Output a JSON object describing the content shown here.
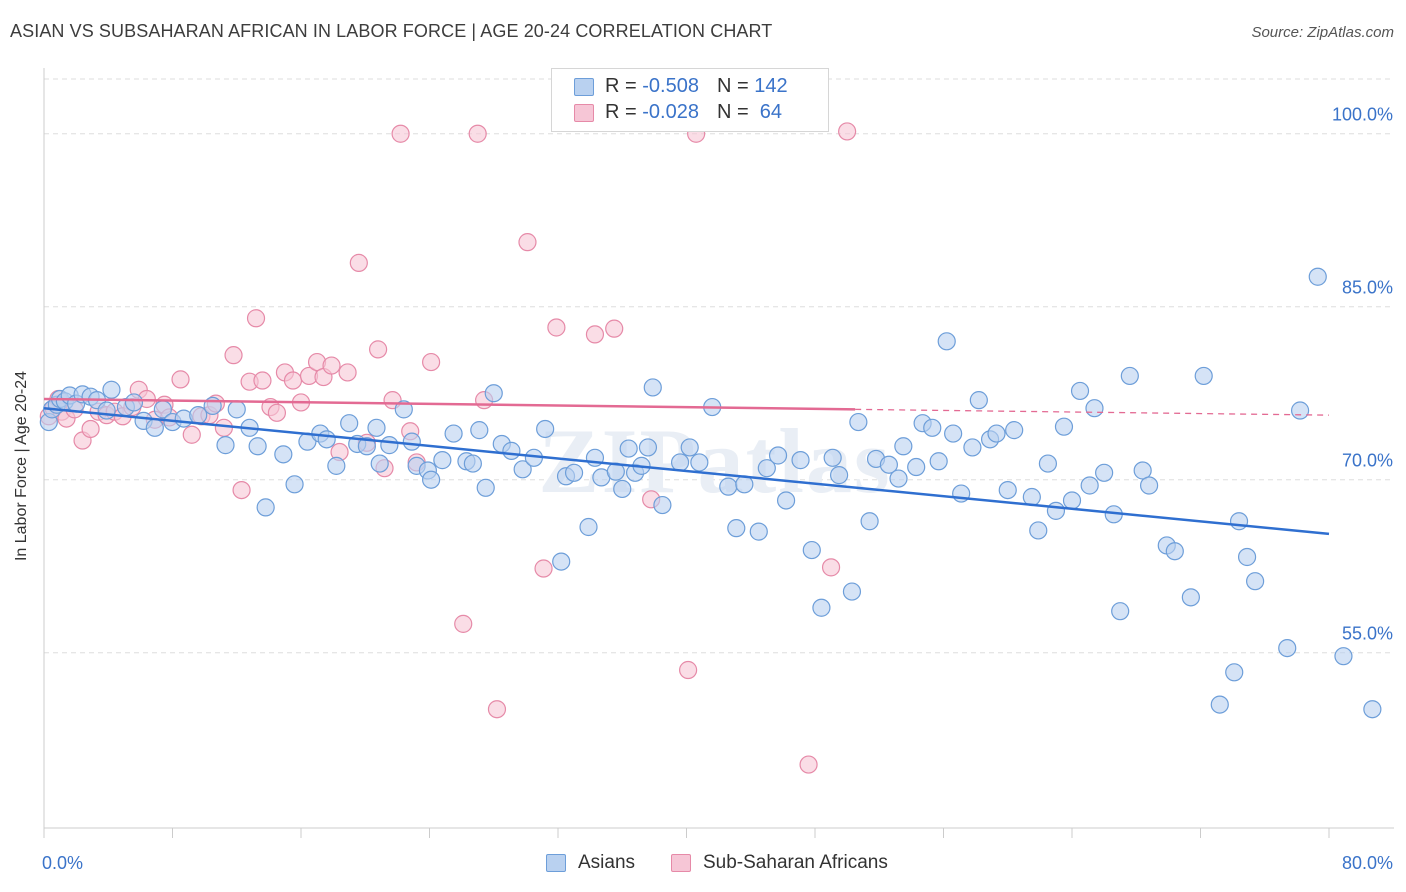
{
  "title": "ASIAN VS SUBSAHARAN AFRICAN IN LABOR FORCE | AGE 20-24 CORRELATION CHART",
  "source": "Source: ZipAtlas.com",
  "colors": {
    "asians_fill": "#b9d1f0",
    "asians_stroke": "#6d9ed9",
    "asians_line": "#2f6fd0",
    "african_fill": "#f6c6d6",
    "african_stroke": "#e68aa8",
    "african_line": "#e36a93",
    "tick_label": "#3a73c9",
    "grid": "#dddddd"
  },
  "legend": {
    "rows": [
      {
        "r_label": "R = ",
        "r_value": "-0.508",
        "n_label": "N = ",
        "n_value": "142"
      },
      {
        "r_label": "R = ",
        "r_value": "-0.028",
        "n_label": "N = ",
        "n_value": " 64"
      }
    ]
  },
  "bottom_legend": [
    "Asians",
    "Sub-Saharan Africans"
  ],
  "chart_data": {
    "type": "scatter",
    "title": "ASIAN VS SUBSAHARAN AFRICAN IN LABOR FORCE | AGE 20-24 CORRELATION CHART",
    "xlabel": "",
    "ylabel": "In Labor Force | Age 20-24",
    "xlim": [
      0,
      80
    ],
    "ylim": [
      39.8,
      105.7
    ],
    "x_tick_labels": [
      "0.0%",
      "80.0%"
    ],
    "y_ticks": [
      55,
      70,
      85,
      100
    ],
    "y_tick_labels": [
      "55.0%",
      "70.0%",
      "85.0%",
      "100.0%"
    ],
    "grid": true,
    "legend_position": "top-center",
    "watermark": "ZIPatlas",
    "series": [
      {
        "name": "Asians",
        "r": -0.508,
        "n": 142,
        "trend": {
          "x": [
            0,
            80
          ],
          "y": [
            76.2,
            65.3
          ]
        },
        "points": [
          [
            0.3,
            75.0
          ],
          [
            0.5,
            76.1
          ],
          [
            0.8,
            76.5
          ],
          [
            1.0,
            77.0
          ],
          [
            1.3,
            76.8
          ],
          [
            1.6,
            77.3
          ],
          [
            2.0,
            76.6
          ],
          [
            2.4,
            77.4
          ],
          [
            2.9,
            77.2
          ],
          [
            3.3,
            76.9
          ],
          [
            3.9,
            76.0
          ],
          [
            4.2,
            77.8
          ],
          [
            5.1,
            76.3
          ],
          [
            5.6,
            76.7
          ],
          [
            6.2,
            75.1
          ],
          [
            6.9,
            74.5
          ],
          [
            7.4,
            76.1
          ],
          [
            8.0,
            75.0
          ],
          [
            8.7,
            75.3
          ],
          [
            9.6,
            75.6
          ],
          [
            10.5,
            76.4
          ],
          [
            11.3,
            73.0
          ],
          [
            12.0,
            76.1
          ],
          [
            12.8,
            74.5
          ],
          [
            13.3,
            72.9
          ],
          [
            13.8,
            67.6
          ],
          [
            14.9,
            72.2
          ],
          [
            15.6,
            69.6
          ],
          [
            16.4,
            73.3
          ],
          [
            17.2,
            74.0
          ],
          [
            17.6,
            73.5
          ],
          [
            18.2,
            71.2
          ],
          [
            19.0,
            74.9
          ],
          [
            19.5,
            73.1
          ],
          [
            20.1,
            72.9
          ],
          [
            20.7,
            74.5
          ],
          [
            20.9,
            71.4
          ],
          [
            21.5,
            73.0
          ],
          [
            22.4,
            76.1
          ],
          [
            22.9,
            73.3
          ],
          [
            23.2,
            71.2
          ],
          [
            23.9,
            70.8
          ],
          [
            24.1,
            70.0
          ],
          [
            24.8,
            71.7
          ],
          [
            25.5,
            74.0
          ],
          [
            26.3,
            71.6
          ],
          [
            26.7,
            71.4
          ],
          [
            27.1,
            74.3
          ],
          [
            27.5,
            69.3
          ],
          [
            28.0,
            77.5
          ],
          [
            28.5,
            73.1
          ],
          [
            29.1,
            72.5
          ],
          [
            29.8,
            70.9
          ],
          [
            30.5,
            71.9
          ],
          [
            31.2,
            74.4
          ],
          [
            32.2,
            62.9
          ],
          [
            32.5,
            70.3
          ],
          [
            33.0,
            70.6
          ],
          [
            33.9,
            65.9
          ],
          [
            34.3,
            71.9
          ],
          [
            34.7,
            70.2
          ],
          [
            35.6,
            70.7
          ],
          [
            36.0,
            69.2
          ],
          [
            36.4,
            72.7
          ],
          [
            36.8,
            70.6
          ],
          [
            37.2,
            71.2
          ],
          [
            37.6,
            72.8
          ],
          [
            37.9,
            78.0
          ],
          [
            38.5,
            67.8
          ],
          [
            39.6,
            71.5
          ],
          [
            40.2,
            72.8
          ],
          [
            40.8,
            71.5
          ],
          [
            41.6,
            76.3
          ],
          [
            42.6,
            69.4
          ],
          [
            43.1,
            65.8
          ],
          [
            43.6,
            69.6
          ],
          [
            44.5,
            65.5
          ],
          [
            45.0,
            71.0
          ],
          [
            45.7,
            72.1
          ],
          [
            46.2,
            68.2
          ],
          [
            47.1,
            71.7
          ],
          [
            47.8,
            63.9
          ],
          [
            48.4,
            58.9
          ],
          [
            49.1,
            71.9
          ],
          [
            49.5,
            70.4
          ],
          [
            50.3,
            60.3
          ],
          [
            50.7,
            75.0
          ],
          [
            51.4,
            66.4
          ],
          [
            51.8,
            71.8
          ],
          [
            52.6,
            71.3
          ],
          [
            53.2,
            70.1
          ],
          [
            53.5,
            72.9
          ],
          [
            54.3,
            71.1
          ],
          [
            54.7,
            74.9
          ],
          [
            55.3,
            74.5
          ],
          [
            55.7,
            71.6
          ],
          [
            56.2,
            82.0
          ],
          [
            56.6,
            74.0
          ],
          [
            57.1,
            68.8
          ],
          [
            57.8,
            72.8
          ],
          [
            58.2,
            76.9
          ],
          [
            58.9,
            73.5
          ],
          [
            59.3,
            74.0
          ],
          [
            60.0,
            69.1
          ],
          [
            60.4,
            74.3
          ],
          [
            61.5,
            68.5
          ],
          [
            61.9,
            65.6
          ],
          [
            62.5,
            71.4
          ],
          [
            63.0,
            67.3
          ],
          [
            63.5,
            74.6
          ],
          [
            64.0,
            68.2
          ],
          [
            64.5,
            77.7
          ],
          [
            65.1,
            69.5
          ],
          [
            65.4,
            76.2
          ],
          [
            66.0,
            70.6
          ],
          [
            66.6,
            67.0
          ],
          [
            67.0,
            58.6
          ],
          [
            67.6,
            79.0
          ],
          [
            68.4,
            70.8
          ],
          [
            68.8,
            69.5
          ],
          [
            69.9,
            64.3
          ],
          [
            70.4,
            63.8
          ],
          [
            71.4,
            59.8
          ],
          [
            72.2,
            79.0
          ],
          [
            73.2,
            50.5
          ],
          [
            74.1,
            53.3
          ],
          [
            74.4,
            66.4
          ],
          [
            74.9,
            63.3
          ],
          [
            75.4,
            61.2
          ],
          [
            77.4,
            55.4
          ],
          [
            78.2,
            76.0
          ],
          [
            79.3,
            87.6
          ],
          [
            80.9,
            54.7
          ],
          [
            82.7,
            50.1
          ]
        ]
      },
      {
        "name": "Sub-Saharan Africans",
        "r": -0.028,
        "n": 64,
        "trend": {
          "x": [
            0,
            50.5,
            80
          ],
          "y": [
            77.0,
            76.1,
            75.6
          ]
        },
        "points": [
          [
            0.3,
            75.5
          ],
          [
            0.6,
            76.2
          ],
          [
            0.9,
            77.0
          ],
          [
            1.1,
            75.9
          ],
          [
            1.4,
            75.3
          ],
          [
            1.9,
            76.1
          ],
          [
            2.4,
            73.4
          ],
          [
            2.9,
            74.4
          ],
          [
            3.4,
            75.9
          ],
          [
            3.9,
            75.6
          ],
          [
            4.4,
            75.9
          ],
          [
            4.9,
            75.5
          ],
          [
            5.5,
            76.3
          ],
          [
            5.9,
            77.8
          ],
          [
            6.4,
            77.0
          ],
          [
            6.9,
            75.2
          ],
          [
            7.5,
            76.5
          ],
          [
            7.8,
            75.4
          ],
          [
            8.5,
            78.7
          ],
          [
            9.2,
            73.9
          ],
          [
            9.8,
            75.5
          ],
          [
            10.3,
            75.6
          ],
          [
            10.7,
            76.6
          ],
          [
            11.2,
            74.5
          ],
          [
            11.8,
            80.8
          ],
          [
            12.3,
            69.1
          ],
          [
            12.8,
            78.5
          ],
          [
            13.2,
            84.0
          ],
          [
            13.6,
            78.6
          ],
          [
            14.1,
            76.3
          ],
          [
            14.5,
            75.8
          ],
          [
            15.0,
            79.3
          ],
          [
            15.5,
            78.6
          ],
          [
            16.0,
            76.7
          ],
          [
            16.5,
            79.0
          ],
          [
            17.0,
            80.2
          ],
          [
            17.4,
            78.9
          ],
          [
            17.9,
            79.9
          ],
          [
            18.4,
            72.4
          ],
          [
            18.9,
            79.3
          ],
          [
            19.6,
            88.8
          ],
          [
            20.1,
            73.2
          ],
          [
            20.8,
            81.3
          ],
          [
            21.2,
            71.0
          ],
          [
            21.7,
            76.9
          ],
          [
            22.2,
            100.0
          ],
          [
            22.8,
            74.2
          ],
          [
            23.2,
            71.5
          ],
          [
            24.1,
            80.2
          ],
          [
            26.1,
            57.5
          ],
          [
            27.0,
            100.0
          ],
          [
            27.4,
            76.9
          ],
          [
            28.2,
            50.1
          ],
          [
            30.1,
            90.6
          ],
          [
            31.1,
            62.3
          ],
          [
            31.9,
            83.2
          ],
          [
            34.3,
            82.6
          ],
          [
            35.5,
            83.1
          ],
          [
            37.8,
            68.3
          ],
          [
            40.1,
            53.5
          ],
          [
            40.6,
            100.0
          ],
          [
            47.6,
            45.3
          ],
          [
            49.0,
            62.4
          ],
          [
            50.0,
            100.2
          ]
        ]
      }
    ]
  }
}
